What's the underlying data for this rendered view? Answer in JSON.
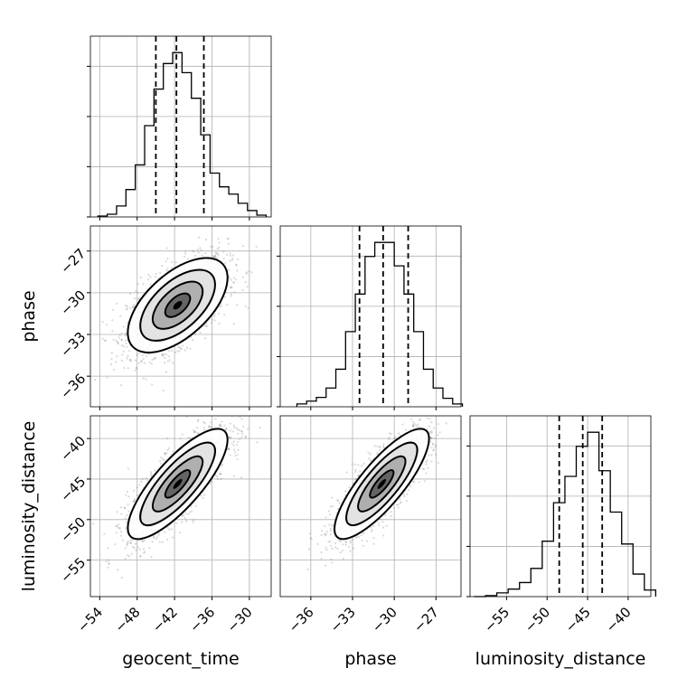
{
  "chart_data": {
    "type": "corner",
    "parameters": [
      {
        "name": "geocent_time",
        "label": "geocent_time",
        "range": [
          -55.5,
          -26.5
        ],
        "ticks": [
          -54,
          -48,
          -42,
          -36,
          -30
        ],
        "tick_labels": [
          "−54",
          "−48",
          "−42",
          "−36",
          "−30"
        ],
        "quantiles": [
          -45,
          -41.7,
          -37.3
        ]
      },
      {
        "name": "phase",
        "label": "phase",
        "range": [
          -38.2,
          -25.2
        ],
        "ticks": [
          -36,
          -33,
          -30,
          -27
        ],
        "tick_labels": [
          "−36",
          "−33",
          "−30",
          "−27"
        ],
        "quantiles": [
          -32.5,
          -30.8,
          -29.0
        ]
      },
      {
        "name": "luminosity_distance",
        "label": "luminosity_distance",
        "range": [
          -59.5,
          -37.2
        ],
        "ticks": [
          -55,
          -50,
          -45,
          -40
        ],
        "tick_labels": [
          "−55",
          "−50",
          "−45",
          "−40"
        ],
        "quantiles": [
          -48.5,
          -45.6,
          -43.2
        ]
      }
    ],
    "histograms": [
      {
        "parameter": "geocent_time",
        "bin_edges": [
          -54.3,
          -52.8,
          -51.3,
          -49.8,
          -48.3,
          -46.8,
          -45.3,
          -43.8,
          -42.3,
          -40.8,
          -39.3,
          -37.8,
          -36.3,
          -34.8,
          -33.3,
          -31.8,
          -30.3,
          -28.8,
          -27.3
        ],
        "counts": [
          1,
          3,
          12,
          30,
          57,
          100,
          140,
          168,
          180,
          158,
          130,
          90,
          48,
          33,
          25,
          15,
          7,
          2
        ]
      },
      {
        "parameter": "phase",
        "bin_edges": [
          -37.0,
          -36.3,
          -35.6,
          -34.9,
          -34.2,
          -33.5,
          -32.8,
          -32.1,
          -31.4,
          -30.7,
          -30.0,
          -29.3,
          -28.6,
          -27.9,
          -27.2,
          -26.5,
          -25.8,
          -25.1
        ],
        "counts": [
          3,
          6,
          10,
          20,
          40,
          80,
          120,
          160,
          175,
          175,
          150,
          120,
          80,
          40,
          20,
          9,
          3
        ]
      },
      {
        "parameter": "luminosity_distance",
        "bin_edges": [
          -59.0,
          -57.6,
          -56.2,
          -54.8,
          -53.4,
          -52.0,
          -50.6,
          -49.2,
          -47.8,
          -46.4,
          -45.0,
          -43.6,
          -42.2,
          -40.8,
          -39.4,
          -38.0,
          -36.6
        ],
        "counts": [
          0,
          1,
          4,
          8,
          15,
          30,
          59,
          100,
          128,
          160,
          175,
          134,
          90,
          56,
          24,
          7
        ]
      }
    ],
    "pairs": [
      {
        "x": "geocent_time",
        "y": "phase",
        "mean": [
          -41.5,
          -30.9
        ],
        "sd": [
          4.0,
          1.7
        ],
        "corr": 0.58
      },
      {
        "x": "geocent_time",
        "y": "luminosity_distance",
        "mean": [
          -41.5,
          -45.6
        ],
        "sd": [
          4.0,
          3.4
        ],
        "corr": 0.8
      },
      {
        "x": "phase",
        "y": "luminosity_distance",
        "mean": [
          -30.9,
          -45.6
        ],
        "sd": [
          1.7,
          3.4
        ],
        "corr": 0.82
      }
    ],
    "contour_levels_sigma": [
      0.5,
      1.0,
      1.5,
      2.0
    ],
    "grid": true,
    "quantile_line_style": "dashed",
    "contour_fill": "grayscale",
    "scatter_color": "#808080"
  }
}
